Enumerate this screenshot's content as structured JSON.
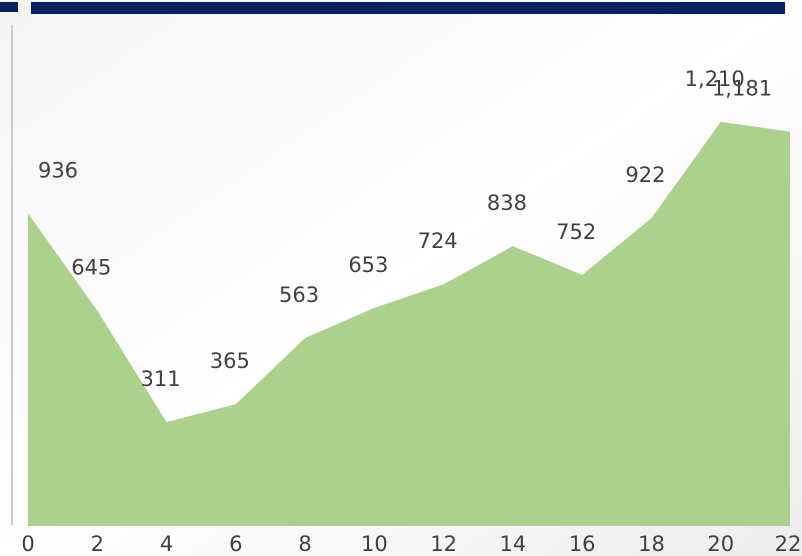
{
  "chart_data": {
    "type": "area",
    "x": [
      0,
      2,
      4,
      6,
      8,
      10,
      12,
      14,
      16,
      18,
      20,
      22
    ],
    "values": [
      936,
      645,
      311,
      365,
      563,
      653,
      724,
      838,
      752,
      922,
      1210,
      1181
    ],
    "value_labels": [
      "936",
      "645",
      "311",
      "365",
      "563",
      "653",
      "724",
      "838",
      "752",
      "922",
      "1,210",
      "1,181"
    ],
    "color": "#aed08e",
    "xlim": [
      0,
      22
    ],
    "xticks": [
      0,
      2,
      4,
      6,
      8,
      10,
      12,
      14,
      16,
      18,
      20,
      22
    ],
    "ylim": [
      0,
      1575
    ]
  }
}
